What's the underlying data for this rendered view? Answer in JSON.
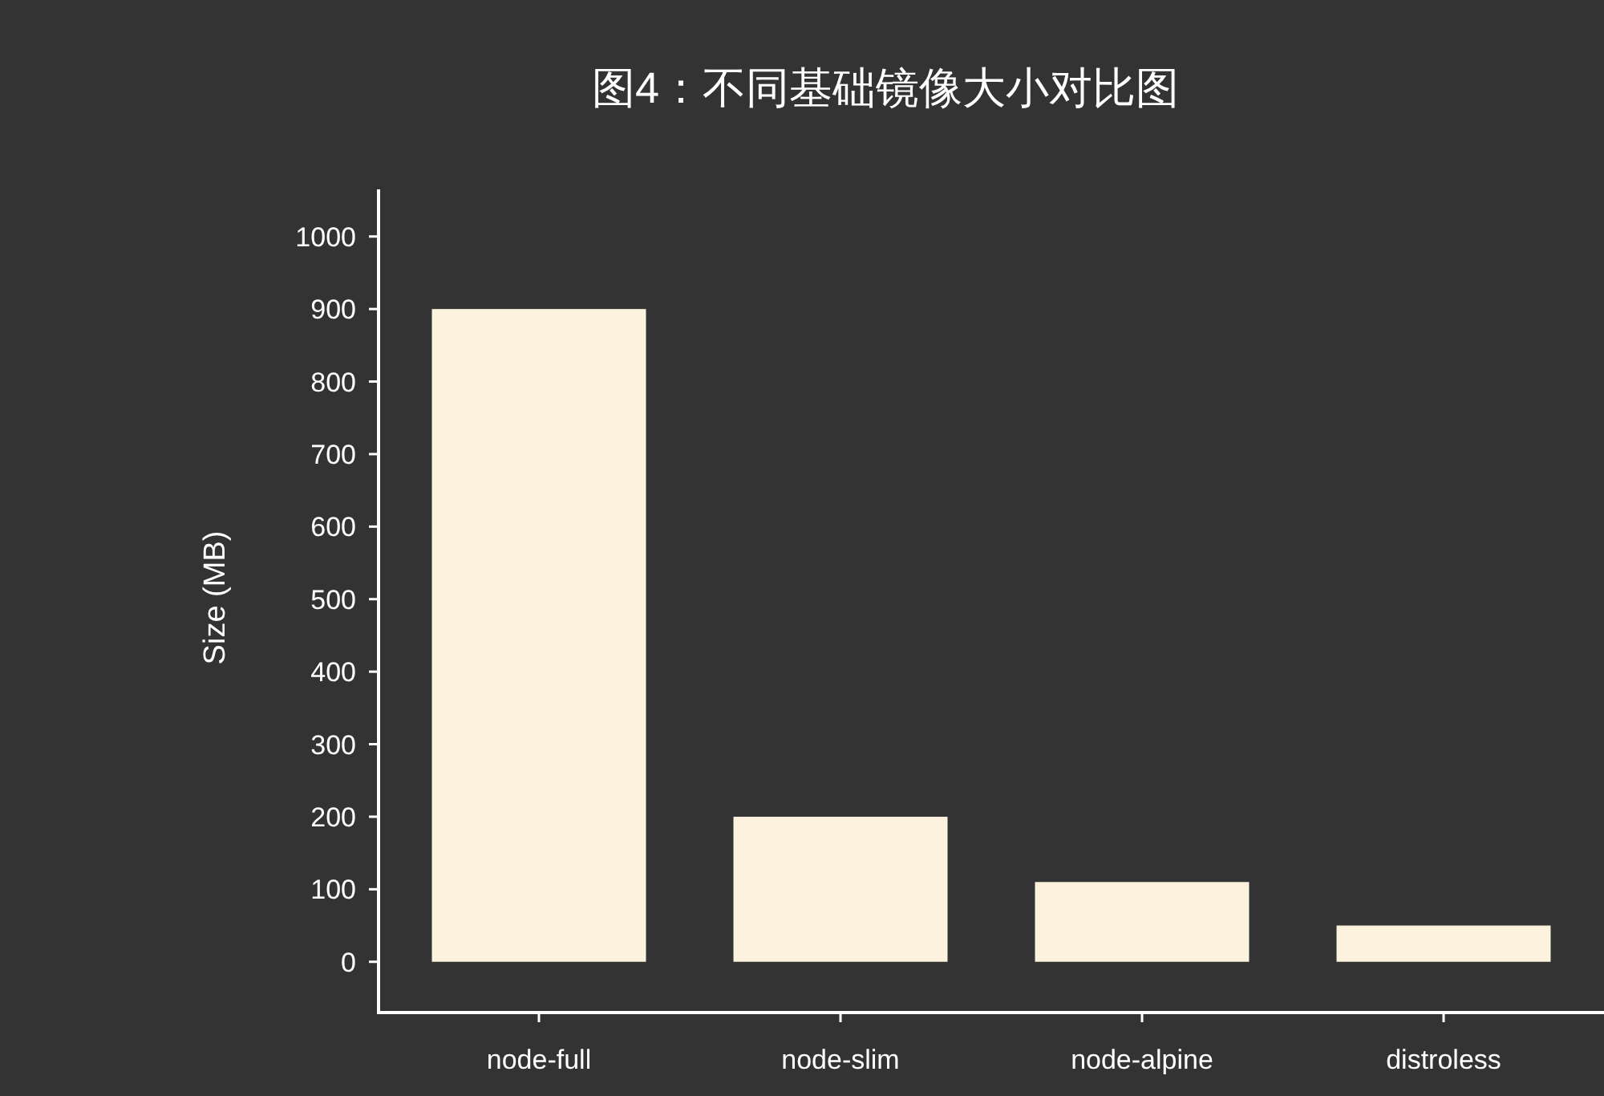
{
  "chart_data": {
    "type": "bar",
    "title": "图4：不同基础镜像大小对比图",
    "ylabel": "Size (MB)",
    "categories": [
      "node-full",
      "node-slim",
      "node-alpine",
      "distroless"
    ],
    "values": [
      900,
      200,
      110,
      50
    ],
    "color": "#fdf2dd",
    "ylim": [
      -70,
      1065
    ],
    "yticks": [
      0,
      100,
      200,
      300,
      400,
      500,
      600,
      700,
      800,
      900,
      1000
    ],
    "grid": false
  }
}
